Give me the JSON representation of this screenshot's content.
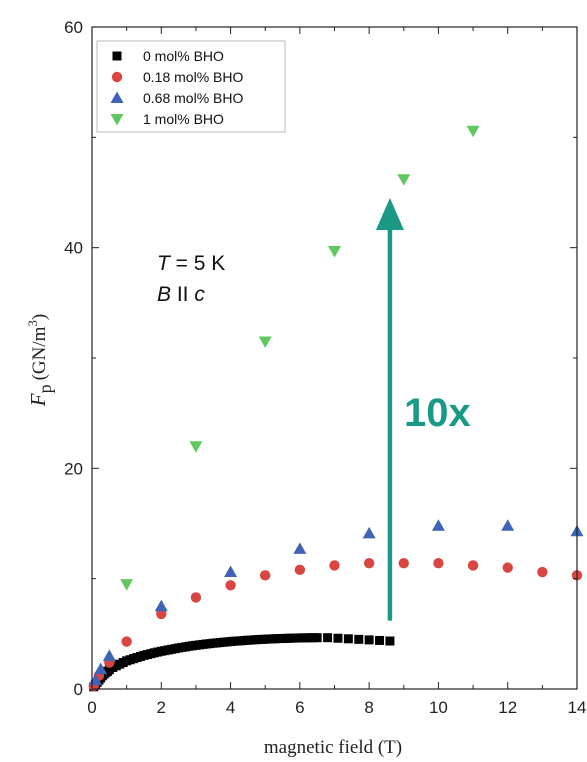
{
  "chart_data": {
    "type": "scatter",
    "xlabel": "magnetic field (T)",
    "ylabel_main": "F",
    "ylabel_sub": "p",
    "ylabel_unit": "(GN/m",
    "ylabel_sup": "3",
    "ylabel_close": ")",
    "xlim": [
      0,
      14
    ],
    "ylim": [
      0,
      60
    ],
    "xticks": [
      0,
      2,
      4,
      6,
      8,
      10,
      12,
      14
    ],
    "yticks": [
      0,
      20,
      40,
      60
    ],
    "grid": false,
    "legend_position": "top-left",
    "annotation": {
      "line1_var": "T",
      "line1_rest": " = 5 K",
      "line2_var1": "B",
      "line2_mid": " II ",
      "line2_var2": "c",
      "arrow_label": "10x",
      "arrow_color": "#1a9a86",
      "arrow_x": 8.6,
      "arrow_y_from": 6.2,
      "arrow_y_to": 44.5
    },
    "series": [
      {
        "name": "0 mol% BHO",
        "marker": "square",
        "color": "#000000",
        "x": [
          0.05,
          0.1,
          0.15,
          0.2,
          0.25,
          0.3,
          0.35,
          0.4,
          0.45,
          0.5,
          0.6,
          0.7,
          0.8,
          0.9,
          1.0,
          1.1,
          1.2,
          1.3,
          1.4,
          1.5,
          1.6,
          1.7,
          1.8,
          1.9,
          2.0,
          2.1,
          2.2,
          2.3,
          2.4,
          2.5,
          2.6,
          2.7,
          2.8,
          2.9,
          3.0,
          3.1,
          3.2,
          3.3,
          3.4,
          3.5,
          3.6,
          3.7,
          3.8,
          3.9,
          4.0,
          4.1,
          4.2,
          4.3,
          4.4,
          4.5,
          4.6,
          4.7,
          4.8,
          4.9,
          5.0,
          5.1,
          5.2,
          5.3,
          5.4,
          5.5,
          5.6,
          5.7,
          5.8,
          5.9,
          6.0,
          6.1,
          6.2,
          6.3,
          6.4,
          6.5,
          6.8,
          7.1,
          7.4,
          7.7,
          8.0,
          8.3,
          8.6
        ],
        "y": [
          0.2,
          0.4,
          0.6,
          0.8,
          1.0,
          1.2,
          1.35,
          1.5,
          1.6,
          1.75,
          1.95,
          2.1,
          2.25,
          2.4,
          2.55,
          2.65,
          2.75,
          2.85,
          2.95,
          3.05,
          3.12,
          3.2,
          3.28,
          3.35,
          3.42,
          3.48,
          3.54,
          3.6,
          3.66,
          3.72,
          3.77,
          3.82,
          3.87,
          3.92,
          3.96,
          4.0,
          4.04,
          4.08,
          4.11,
          4.15,
          4.18,
          4.21,
          4.24,
          4.27,
          4.3,
          4.33,
          4.35,
          4.37,
          4.4,
          4.42,
          4.44,
          4.46,
          4.48,
          4.5,
          4.51,
          4.53,
          4.54,
          4.56,
          4.57,
          4.58,
          4.59,
          4.6,
          4.61,
          4.62,
          4.63,
          4.63,
          4.64,
          4.64,
          4.65,
          4.65,
          4.65,
          4.6,
          4.55,
          4.5,
          4.45,
          4.4,
          4.35
        ]
      },
      {
        "name": "0.18 mol% BHO",
        "marker": "circle",
        "color": "#d94541",
        "x": [
          0.05,
          0.2,
          0.5,
          1,
          2,
          3,
          4,
          5,
          6,
          7,
          8,
          9,
          10,
          11,
          12,
          13,
          14
        ],
        "y": [
          0.3,
          1.2,
          2.4,
          4.3,
          6.8,
          8.3,
          9.4,
          10.3,
          10.8,
          11.2,
          11.4,
          11.4,
          11.4,
          11.2,
          11.0,
          10.6,
          10.3
        ]
      },
      {
        "name": "0.68 mol% BHO",
        "marker": "triangle-up",
        "color": "#3f63b6",
        "x": [
          0.1,
          0.25,
          0.5,
          2,
          4,
          6,
          8,
          10,
          12,
          14
        ],
        "y": [
          0.8,
          1.8,
          3.0,
          7.5,
          10.6,
          12.7,
          14.1,
          14.8,
          14.8,
          14.3
        ]
      },
      {
        "name": "1 mol% BHO",
        "marker": "triangle-down",
        "color": "#5fc860",
        "x": [
          1,
          3,
          5,
          7,
          9,
          11
        ],
        "y": [
          9.5,
          22.0,
          31.5,
          39.7,
          46.2,
          50.6
        ]
      }
    ]
  }
}
